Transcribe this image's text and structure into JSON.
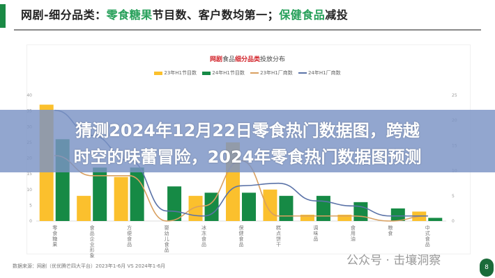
{
  "header": {
    "title_parts": [
      "网剧-细分品类：",
      "零食糖果",
      "节目数、客户数均第一；",
      "保健食品",
      "减投"
    ]
  },
  "chart_data": {
    "type": "bar",
    "title_parts": [
      "网剧",
      "食品",
      "细分品类",
      "投放分布"
    ],
    "categories": [
      "零食糖果",
      "食品企业形象",
      "方便食品",
      "婴幼儿食品",
      "冰冻食品",
      "保健食品",
      "糕点饼干",
      "调味品",
      "食用油",
      "粮食",
      "中式食品"
    ],
    "series": [
      {
        "name": "23年H1节目数",
        "type": "bar",
        "axis": "left",
        "color": "#fbc02d",
        "values": [
          37,
          8,
          14,
          0,
          8,
          25,
          10,
          2,
          2,
          0,
          3
        ]
      },
      {
        "name": "24年H1节目数",
        "type": "bar",
        "axis": "left",
        "color": "#168a45",
        "values": [
          26,
          17,
          17,
          11,
          9,
          9,
          8,
          8,
          6,
          4,
          1
        ]
      },
      {
        "name": "23年H1厂商数",
        "type": "line",
        "axis": "right",
        "color": "#d9a060",
        "values": [
          13,
          9,
          9,
          0,
          3,
          12,
          1,
          1,
          1,
          0,
          1
        ]
      },
      {
        "name": "24年H1厂商数",
        "type": "line",
        "axis": "right",
        "color": "#5b73a8",
        "values": [
          22,
          17,
          12,
          2,
          1,
          7,
          7.5,
          4,
          3,
          1,
          1
        ]
      }
    ],
    "left_axis": {
      "ylim": [
        0,
        40
      ],
      "ticks": [
        0,
        5,
        10,
        15,
        20,
        25,
        30,
        35,
        40
      ]
    },
    "right_axis": {
      "ylim": [
        0,
        25
      ],
      "ticks": [
        0,
        5,
        10,
        15,
        20,
        25
      ]
    },
    "grid": false,
    "legend": "top"
  },
  "overlay": {
    "line1": "猜测2024年12月22日零食热门数据图，跨越",
    "line2": "时空的味蕾冒险，2024年零食热门数据图预测"
  },
  "footer": {
    "source": "数据来源：网剧（优优腾芒四大平台）2023年1-6月 VS 2024年1-6月",
    "watermark": "公众号 · 击壤洞察",
    "page_number": "8"
  }
}
